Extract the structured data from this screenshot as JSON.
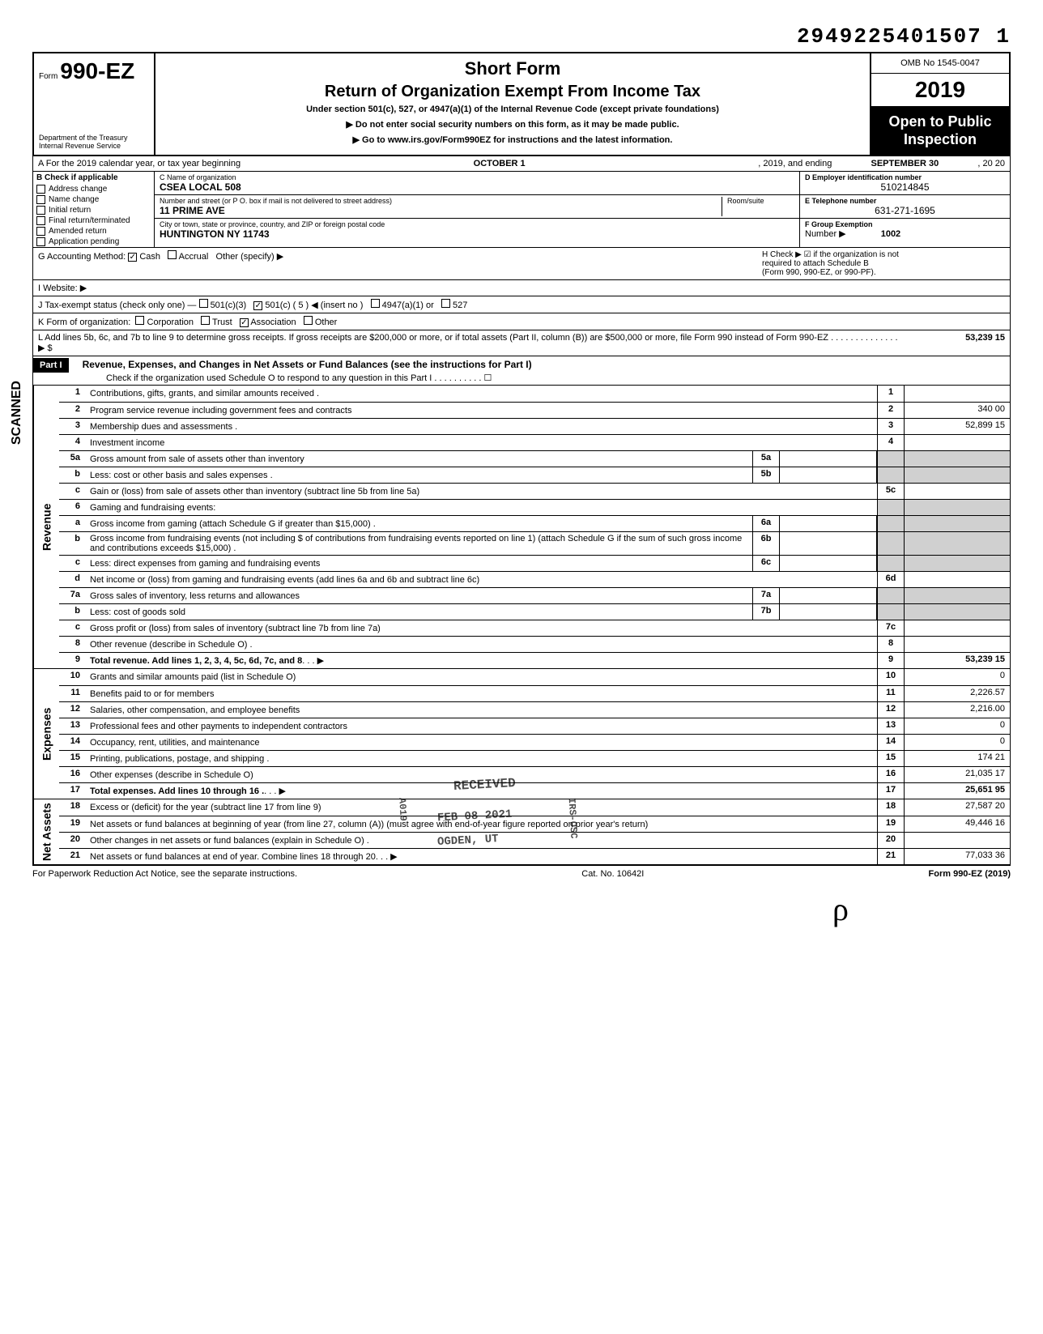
{
  "top_number": "2949225401507 1",
  "header": {
    "form_prefix": "Form",
    "form_number": "990-EZ",
    "dept1": "Department of the Treasury",
    "dept2": "Internal Revenue Service",
    "title1": "Short Form",
    "title2": "Return of Organization Exempt From Income Tax",
    "sub": "Under section 501(c), 527, or 4947(a)(1) of the Internal Revenue Code (except private foundations)",
    "note1": "▶ Do not enter social security numbers on this form, as it may be made public.",
    "note2": "▶ Go to www.irs.gov/Form990EZ for instructions and the latest information.",
    "omb": "OMB No 1545-0047",
    "year": "2019",
    "open1": "Open to Public",
    "open2": "Inspection"
  },
  "row_a": {
    "prefix": "A  For the 2019 calendar year, or tax year beginning",
    "begin": "OCTOBER 1",
    "mid": ", 2019, and ending",
    "end": "SEPTEMBER 30",
    "suffix": ", 20  20"
  },
  "col_b": {
    "head": "B  Check if applicable",
    "items": [
      {
        "label": "Address change",
        "checked": false
      },
      {
        "label": "Name change",
        "checked": false
      },
      {
        "label": "Initial return",
        "checked": false
      },
      {
        "label": "Final return/terminated",
        "checked": false
      },
      {
        "label": "Amended return",
        "checked": false
      },
      {
        "label": "Application pending",
        "checked": false
      }
    ]
  },
  "col_c": {
    "name_label": "C  Name of organization",
    "name": "CSEA LOCAL 508",
    "street_label": "Number and street (or P O. box if mail is not delivered to street address)",
    "room_label": "Room/suite",
    "street": "11 PRIME AVE",
    "city_label": "City or town, state or province, country, and ZIP or foreign postal code",
    "city": "HUNTINGTON NY 11743"
  },
  "col_def": {
    "d_label": "D Employer identification number",
    "d_val": "510214845",
    "e_label": "E Telephone number",
    "e_val": "631-271-1695",
    "f_label": "F Group Exemption",
    "f_label2": "Number ▶",
    "f_val": "1002"
  },
  "row_g": {
    "label": "G  Accounting Method:",
    "cash": "Cash",
    "accrual": "Accrual",
    "other": "Other (specify) ▶",
    "cash_checked": true
  },
  "row_h": {
    "text1": "H  Check ▶ ☑ if the organization is not",
    "text2": "required to attach Schedule B",
    "text3": "(Form 990, 990-EZ, or 990-PF)."
  },
  "row_i": "I   Website: ▶",
  "row_j": {
    "label": "J  Tax-exempt status (check only one) —",
    "opt1": "501(c)(3)",
    "opt2": "501(c) ( 5 ) ◀ (insert no )",
    "opt2_checked": true,
    "opt3": "4947(a)(1) or",
    "opt4": "527"
  },
  "row_k": {
    "label": "K  Form of organization:",
    "corp": "Corporation",
    "trust": "Trust",
    "assoc": "Association",
    "assoc_checked": true,
    "other": "Other"
  },
  "row_l": {
    "text": "L  Add lines 5b, 6c, and 7b to line 9 to determine gross receipts. If gross receipts are $200,000 or more, or if total assets (Part II, column (B)) are $500,000 or more, file Form 990 instead of Form 990-EZ . . . . . . . . . . . . . . ▶  $",
    "val": "53,239 15"
  },
  "part1": {
    "label": "Part I",
    "title": "Revenue, Expenses, and Changes in Net Assets or Fund Balances (see the instructions for Part I)",
    "check": "Check if the organization used Schedule O to respond to any question in this Part I . . . . . . . . . . ☐"
  },
  "sections": {
    "revenue": "Revenue",
    "expenses": "Expenses",
    "netassets": "Net Assets",
    "scanned": "SCANNED"
  },
  "lines": [
    {
      "n": "1",
      "t": "Contributions, gifts, grants, and similar amounts received .",
      "rn": "1",
      "rv": ""
    },
    {
      "n": "2",
      "t": "Program service revenue including government fees and contracts",
      "rn": "2",
      "rv": "340 00"
    },
    {
      "n": "3",
      "t": "Membership dues and assessments .",
      "rn": "3",
      "rv": "52,899 15"
    },
    {
      "n": "4",
      "t": "Investment income",
      "rn": "4",
      "rv": ""
    },
    {
      "n": "5a",
      "t": "Gross amount from sale of assets other than inventory",
      "mn": "5a",
      "mv": "",
      "shadeR": true
    },
    {
      "n": "b",
      "t": "Less: cost or other basis and sales expenses .",
      "mn": "5b",
      "mv": "",
      "shadeR": true
    },
    {
      "n": "c",
      "t": "Gain or (loss) from sale of assets other than inventory (subtract line 5b from line 5a)",
      "rn": "5c",
      "rv": ""
    },
    {
      "n": "6",
      "t": "Gaming and fundraising events:",
      "shadeR": true,
      "nobox": true
    },
    {
      "n": "a",
      "t": "Gross income from gaming (attach Schedule G if greater than $15,000) .",
      "mn": "6a",
      "mv": "",
      "shadeR": true
    },
    {
      "n": "b",
      "t": "Gross income from fundraising events (not including  $               of contributions from fundraising events reported on line 1) (attach Schedule G if the sum of such gross income and contributions exceeds $15,000) .",
      "mn": "6b",
      "mv": "",
      "shadeR": true
    },
    {
      "n": "c",
      "t": "Less: direct expenses from gaming and fundraising events",
      "mn": "6c",
      "mv": "",
      "shadeR": true
    },
    {
      "n": "d",
      "t": "Net income or (loss) from gaming and fundraising events (add lines 6a and 6b and subtract line 6c)",
      "rn": "6d",
      "rv": ""
    },
    {
      "n": "7a",
      "t": "Gross sales of inventory, less returns and allowances",
      "mn": "7a",
      "mv": "",
      "shadeR": true
    },
    {
      "n": "b",
      "t": "Less: cost of goods sold",
      "mn": "7b",
      "mv": "",
      "shadeR": true
    },
    {
      "n": "c",
      "t": "Gross profit or (loss) from sales of inventory (subtract line 7b from line 7a)",
      "rn": "7c",
      "rv": ""
    },
    {
      "n": "8",
      "t": "Other revenue (describe in Schedule O) .",
      "rn": "8",
      "rv": ""
    },
    {
      "n": "9",
      "t": "Total revenue. Add lines 1, 2, 3, 4, 5c, 6d, 7c, and 8",
      "rn": "9",
      "rv": "53,239 15",
      "bold": true,
      "arrow": true
    }
  ],
  "exp_lines": [
    {
      "n": "10",
      "t": "Grants and similar amounts paid (list in Schedule O)",
      "rn": "10",
      "rv": "0"
    },
    {
      "n": "11",
      "t": "Benefits paid to or for members",
      "rn": "11",
      "rv": "2,226.57"
    },
    {
      "n": "12",
      "t": "Salaries, other compensation, and employee benefits",
      "rn": "12",
      "rv": "2,216.00"
    },
    {
      "n": "13",
      "t": "Professional fees and other payments to independent contractors",
      "rn": "13",
      "rv": "0"
    },
    {
      "n": "14",
      "t": "Occupancy, rent, utilities, and maintenance",
      "rn": "14",
      "rv": "0"
    },
    {
      "n": "15",
      "t": "Printing, publications, postage, and shipping .",
      "rn": "15",
      "rv": "174 21"
    },
    {
      "n": "16",
      "t": "Other expenses (describe in Schedule O)",
      "rn": "16",
      "rv": "21,035 17"
    },
    {
      "n": "17",
      "t": "Total expenses. Add lines 10 through 16 .",
      "rn": "17",
      "rv": "25,651 95",
      "bold": true,
      "arrow": true
    }
  ],
  "na_lines": [
    {
      "n": "18",
      "t": "Excess or (deficit) for the year (subtract line 17 from line 9)",
      "rn": "18",
      "rv": "27,587 20"
    },
    {
      "n": "19",
      "t": "Net assets or fund balances at beginning of year (from line 27, column (A)) (must agree with end-of-year figure reported on prior year's return)",
      "rn": "19",
      "rv": "49,446 16"
    },
    {
      "n": "20",
      "t": "Other changes in net assets or fund balances (explain in Schedule O) .",
      "rn": "20",
      "rv": ""
    },
    {
      "n": "21",
      "t": "Net assets or fund balances at end of year. Combine lines 18 through 20",
      "rn": "21",
      "rv": "77,033 36",
      "arrow": true
    }
  ],
  "footer": {
    "left": "For Paperwork Reduction Act Notice, see the separate instructions.",
    "mid": "Cat. No. 10642I",
    "right": "Form 990-EZ (2019)"
  },
  "stamps": {
    "received": "RECEIVED",
    "date": "FEB 08 2021",
    "ogden": "OGDEN, UT",
    "irs": "IRS-OSC",
    "a019": "A019"
  },
  "initials": "ρ"
}
